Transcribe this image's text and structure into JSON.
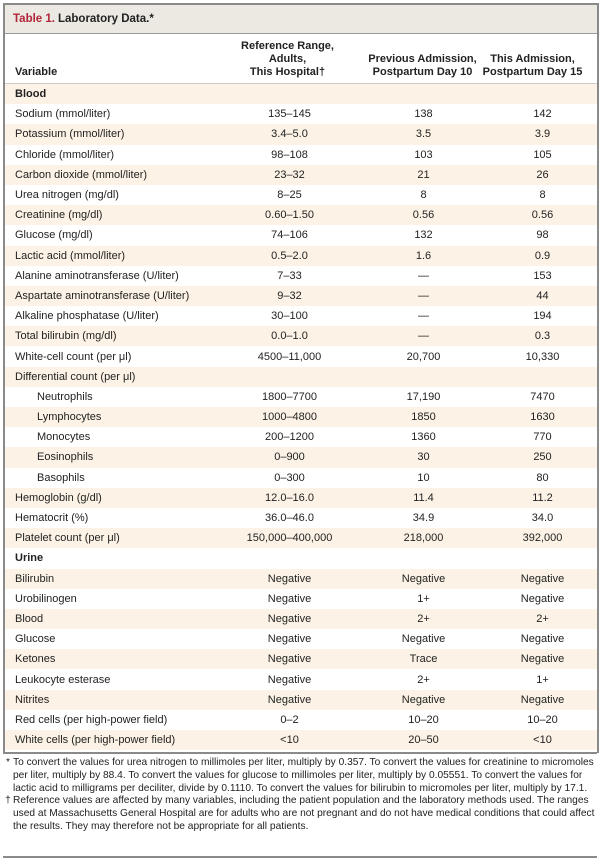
{
  "title": {
    "number": "Table 1.",
    "text": "Laboratory Data.*"
  },
  "headers": {
    "variable": "Variable",
    "reference": [
      "Reference Range,",
      "Adults,",
      "This Hospital†"
    ],
    "previous": [
      "Previous Admission,",
      "Postpartum Day 10"
    ],
    "current": [
      "This Admission,",
      "Postpartum Day 15"
    ]
  },
  "rows": [
    {
      "section": "Blood"
    },
    {
      "v": "Sodium (mmol/liter)",
      "r": "135–145",
      "p": "138",
      "c": "142"
    },
    {
      "v": "Potassium (mmol/liter)",
      "r": "3.4–5.0",
      "p": "3.5",
      "c": "3.9"
    },
    {
      "v": "Chloride (mmol/liter)",
      "r": "98–108",
      "p": "103",
      "c": "105"
    },
    {
      "v": "Carbon dioxide (mmol/liter)",
      "r": "23–32",
      "p": "21",
      "c": "26"
    },
    {
      "v": "Urea nitrogen (mg/dl)",
      "r": "8–25",
      "p": "8",
      "c": "8"
    },
    {
      "v": "Creatinine (mg/dl)",
      "r": "0.60–1.50",
      "p": "0.56",
      "c": "0.56"
    },
    {
      "v": "Glucose (mg/dl)",
      "r": "74–106",
      "p": "132",
      "c": "98"
    },
    {
      "v": "Lactic acid (mmol/liter)",
      "r": "0.5–2.0",
      "p": "1.6",
      "c": "0.9"
    },
    {
      "v": "Alanine aminotransferase (U/liter)",
      "r": "7–33",
      "p": "—",
      "c": "153"
    },
    {
      "v": "Aspartate aminotransferase (U/liter)",
      "r": "9–32",
      "p": "—",
      "c": "44"
    },
    {
      "v": "Alkaline phosphatase (U/liter)",
      "r": "30–100",
      "p": "—",
      "c": "194"
    },
    {
      "v": "Total bilirubin (mg/dl)",
      "r": "0.0–1.0",
      "p": "—",
      "c": "0.3"
    },
    {
      "v": "White-cell count (per μl)",
      "r": "4500–11,000",
      "p": "20,700",
      "c": "10,330"
    },
    {
      "v": "Differential count (per μl)",
      "r": "",
      "p": "",
      "c": ""
    },
    {
      "v": "Neutrophils",
      "r": "1800–7700",
      "p": "17,190",
      "c": "7470",
      "indent": true
    },
    {
      "v": "Lymphocytes",
      "r": "1000–4800",
      "p": "1850",
      "c": "1630",
      "indent": true
    },
    {
      "v": "Monocytes",
      "r": "200–1200",
      "p": "1360",
      "c": "770",
      "indent": true
    },
    {
      "v": "Eosinophils",
      "r": "0–900",
      "p": "30",
      "c": "250",
      "indent": true
    },
    {
      "v": "Basophils",
      "r": "0–300",
      "p": "10",
      "c": "80",
      "indent": true
    },
    {
      "v": "Hemoglobin (g/dl)",
      "r": "12.0–16.0",
      "p": "11.4",
      "c": "11.2"
    },
    {
      "v": "Hematocrit (%)",
      "r": "36.0–46.0",
      "p": "34.9",
      "c": "34.0"
    },
    {
      "v": "Platelet count (per μl)",
      "r": "150,000–400,000",
      "p": "218,000",
      "c": "392,000"
    },
    {
      "section": "Urine"
    },
    {
      "v": "Bilirubin",
      "r": "Negative",
      "p": "Negative",
      "c": "Negative"
    },
    {
      "v": "Urobilinogen",
      "r": "Negative",
      "p": "1+",
      "c": "Negative"
    },
    {
      "v": "Blood",
      "r": "Negative",
      "p": "2+",
      "c": "2+"
    },
    {
      "v": "Glucose",
      "r": "Negative",
      "p": "Negative",
      "c": "Negative"
    },
    {
      "v": "Ketones",
      "r": "Negative",
      "p": "Trace",
      "c": "Negative"
    },
    {
      "v": "Leukocyte esterase",
      "r": "Negative",
      "p": "2+",
      "c": "1+"
    },
    {
      "v": "Nitrites",
      "r": "Negative",
      "p": "Negative",
      "c": "Negative"
    },
    {
      "v": "Red cells (per high-power field)",
      "r": "0–2",
      "p": "10–20",
      "c": "10–20"
    },
    {
      "v": "White cells (per high-power field)",
      "r": "<10",
      "p": "20–50",
      "c": "<10"
    }
  ],
  "footnotes": [
    {
      "mark": "*",
      "text": "To convert the values for urea nitrogen to millimoles per liter, multiply by 0.357. To convert the values for creatinine to micromoles per liter, multiply by 88.4. To convert the values for glucose to millimoles per liter, multiply by 0.05551. To convert the values for lactic acid to milligrams per deciliter, divide by 0.1110. To convert the values for bilirubin to micromoles per liter, multiply by 17.1."
    },
    {
      "mark": "†",
      "text": "Reference values are affected by many variables, including the patient population and the laboratory methods used. The ranges used at Massachusetts General Hospital are for adults who are not pregnant and do not have medical conditions that could affect the results. They may therefore not be appropriate for all patients."
    }
  ],
  "colors": {
    "title_accent": "#b0263a",
    "title_bg": "#ece8e2",
    "stripe": "#fcf3e6"
  }
}
